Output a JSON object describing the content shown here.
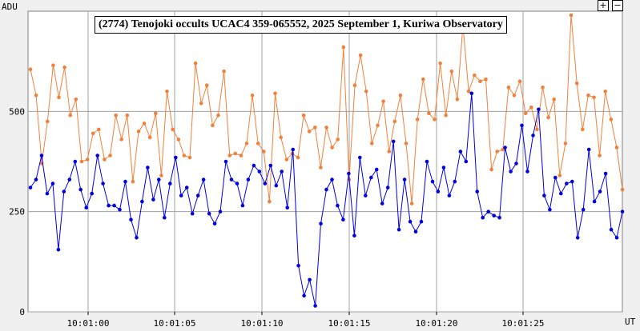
{
  "toolbar": {
    "zoom_in_label": "+",
    "zoom_out_label": "−"
  },
  "chart_data": {
    "type": "line",
    "title": "(2774) Tenojoki occults UCAC4 359-065552, 2025 September 1, Kuriwa Observatory",
    "ylabel": "ADU",
    "xlabel": "UT",
    "ylim": [
      0,
      750
    ],
    "xlim": [
      -0.33,
      0.33
    ],
    "yticks": [
      0,
      250,
      500
    ],
    "xticks": [
      "10:01:00",
      "10:01:05",
      "10:01:10",
      "10:01:15",
      "10:01:20",
      "10:01:25"
    ],
    "grid": true,
    "colors": {
      "orange": "#f0813b",
      "blue": "#0000dd",
      "grid": "#a0a0a0",
      "background": "#ffffff"
    },
    "series": [
      {
        "color": "orange",
        "values": [
          605,
          540,
          370,
          475,
          615,
          535,
          610,
          490,
          530,
          375,
          380,
          445,
          455,
          380,
          390,
          490,
          430,
          490,
          325,
          450,
          470,
          435,
          495,
          340,
          550,
          455,
          430,
          390,
          385,
          620,
          520,
          565,
          465,
          490,
          600,
          390,
          395,
          390,
          420,
          540,
          420,
          400,
          275,
          545,
          435,
          380,
          395,
          385,
          490,
          450,
          460,
          360,
          460,
          410,
          430,
          660,
          330,
          565,
          640,
          550,
          420,
          465,
          525,
          400,
          475,
          540,
          420,
          270,
          480,
          580,
          495,
          480,
          620,
          490,
          600,
          530,
          715,
          550,
          590,
          575,
          580,
          355,
          400,
          405,
          560,
          540,
          575,
          495,
          510,
          455,
          560,
          485,
          530,
          340,
          420,
          740,
          570,
          455,
          540,
          535,
          390,
          550,
          480,
          410,
          305
        ]
      },
      {
        "color": "blue",
        "values": [
          310,
          330,
          390,
          295,
          320,
          155,
          300,
          330,
          375,
          305,
          260,
          295,
          390,
          320,
          265,
          265,
          255,
          325,
          230,
          185,
          275,
          360,
          280,
          330,
          235,
          320,
          385,
          290,
          310,
          245,
          290,
          330,
          245,
          220,
          250,
          375,
          330,
          320,
          265,
          330,
          365,
          350,
          320,
          365,
          315,
          350,
          260,
          405,
          115,
          40,
          80,
          15,
          220,
          305,
          330,
          265,
          230,
          345,
          190,
          385,
          290,
          335,
          355,
          270,
          310,
          425,
          205,
          330,
          225,
          200,
          225,
          375,
          325,
          300,
          360,
          290,
          325,
          400,
          375,
          545,
          300,
          235,
          250,
          240,
          235,
          410,
          350,
          370,
          465,
          350,
          440,
          505,
          290,
          255,
          335,
          295,
          320,
          325,
          185,
          255,
          405,
          275,
          300,
          345,
          205,
          185,
          250
        ]
      }
    ]
  }
}
